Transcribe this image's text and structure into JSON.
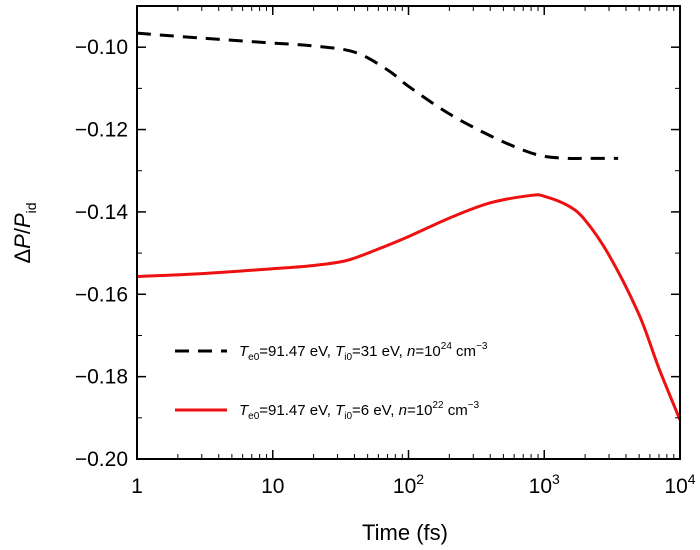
{
  "chart_data": {
    "type": "line",
    "xlabel": "Time (fs)",
    "ylabel": {
      "delta": "Δ",
      "p1": "P",
      "slash": "/",
      "p2": "P",
      "sub": "id"
    },
    "xscale": "log",
    "xlim": [
      1,
      10000
    ],
    "ylim": [
      -0.2,
      -0.09
    ],
    "x_ticks": [
      {
        "value": 1,
        "base": "1",
        "exp": ""
      },
      {
        "value": 10,
        "base": "10",
        "exp": ""
      },
      {
        "value": 100,
        "base": "10",
        "exp": "2"
      },
      {
        "value": 1000,
        "base": "10",
        "exp": "3"
      },
      {
        "value": 10000,
        "base": "10",
        "exp": "4"
      }
    ],
    "y_ticks": [
      {
        "value": -0.1,
        "label": "−0.10"
      },
      {
        "value": -0.12,
        "label": "−0.12"
      },
      {
        "value": -0.14,
        "label": "−0.14"
      },
      {
        "value": -0.16,
        "label": "−0.16"
      },
      {
        "value": -0.18,
        "label": "−0.18"
      },
      {
        "value": -0.2,
        "label": "−0.20"
      }
    ],
    "grid": false,
    "legend_position": "bottom-center",
    "series": [
      {
        "id": "dashed",
        "color": "#000000",
        "style": "dashed",
        "legend": {
          "t1": "T",
          "s1": "e0",
          "v1": "=91.47 eV, ",
          "t2": "T",
          "s2": "i0",
          "v2": "=31 eV, ",
          "t3": "n",
          "v3": "=10",
          "sup": "24",
          "unit": " cm",
          "usup": "−3"
        },
        "x": [
          1,
          3,
          10,
          20,
          40,
          70,
          100,
          200,
          400,
          700,
          1000,
          1500,
          2000,
          3500
        ],
        "y": [
          -0.0966,
          -0.0978,
          -0.099,
          -0.0997,
          -0.1012,
          -0.1055,
          -0.1095,
          -0.1162,
          -0.1215,
          -0.125,
          -0.1265,
          -0.127,
          -0.127,
          -0.127
        ]
      },
      {
        "id": "solid",
        "color": "#ee1111",
        "style": "solid",
        "legend": {
          "t1": "T",
          "s1": "e0",
          "v1": "=91.47 eV, ",
          "t2": "T",
          "s2": "i0",
          "v2": "=6 eV, ",
          "t3": "n",
          "v3": "=10",
          "sup": "22",
          "unit": " cm",
          "usup": "−3"
        },
        "x": [
          1,
          3,
          10,
          20,
          35,
          60,
          100,
          200,
          400,
          800,
          1000,
          1500,
          2000,
          3000,
          5000,
          7000,
          10000
        ],
        "y": [
          -0.1557,
          -0.155,
          -0.1538,
          -0.153,
          -0.1518,
          -0.149,
          -0.146,
          -0.1415,
          -0.1378,
          -0.136,
          -0.1362,
          -0.1385,
          -0.142,
          -0.1505,
          -0.165,
          -0.178,
          -0.1905
        ]
      }
    ]
  }
}
